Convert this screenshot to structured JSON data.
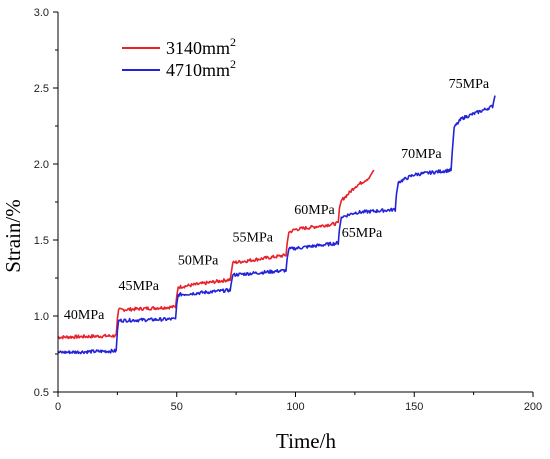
{
  "chart_data": {
    "type": "line",
    "title": "",
    "xlabel": "Time/h",
    "ylabel": "Strain/%",
    "xlim": [
      0,
      200
    ],
    "ylim": [
      0.5,
      3.0
    ],
    "xticks": [
      0,
      50,
      100,
      150,
      200
    ],
    "yticks": [
      0.5,
      1.0,
      1.5,
      2.0,
      2.5,
      3.0
    ],
    "grid": false,
    "legend_position": "top-left",
    "series": [
      {
        "name": "3140mm",
        "name_superscript": "2",
        "color": "#e8212b",
        "x": [
          0,
          24.5,
          25,
          25.5,
          49.5,
          50,
          50.6,
          72.5,
          73,
          73.6,
          96,
          96.5,
          97.2,
          100,
          105,
          118,
          118.5,
          119.3,
          122,
          125,
          128,
          131,
          133
        ],
        "y": [
          0.86,
          0.87,
          0.98,
          1.04,
          1.06,
          1.13,
          1.19,
          1.24,
          1.29,
          1.35,
          1.4,
          1.48,
          1.55,
          1.57,
          1.58,
          1.61,
          1.71,
          1.76,
          1.8,
          1.85,
          1.88,
          1.91,
          1.96
        ]
      },
      {
        "name": "4710mm",
        "name_superscript": "2",
        "color": "#2323d8",
        "x": [
          0,
          24.5,
          25,
          25.5,
          49.5,
          50,
          50.6,
          72.5,
          73,
          73.6,
          96,
          96.5,
          97.2,
          118,
          118.5,
          119.3,
          125,
          142,
          142.5,
          143.3,
          150,
          165.5,
          166,
          166.8,
          170,
          175,
          180,
          183,
          184
        ],
        "y": [
          0.76,
          0.77,
          0.9,
          0.97,
          0.98,
          1.08,
          1.14,
          1.17,
          1.22,
          1.27,
          1.3,
          1.38,
          1.44,
          1.48,
          1.57,
          1.65,
          1.68,
          1.7,
          1.8,
          1.88,
          1.93,
          1.96,
          2.08,
          2.24,
          2.3,
          2.33,
          2.36,
          2.38,
          2.45
        ]
      }
    ],
    "annotations": [
      {
        "text": "40MPa",
        "x": 11,
        "y": 0.98
      },
      {
        "text": "45MPa",
        "x": 34,
        "y": 1.17
      },
      {
        "text": "50MPa",
        "x": 59,
        "y": 1.34
      },
      {
        "text": "55MPa",
        "x": 82,
        "y": 1.49
      },
      {
        "text": "60MPa",
        "x": 108,
        "y": 1.67
      },
      {
        "text": "65MPa",
        "x": 128,
        "y": 1.52
      },
      {
        "text": "70MPa",
        "x": 153,
        "y": 2.04
      },
      {
        "text": "75MPa",
        "x": 173,
        "y": 2.5
      }
    ]
  }
}
